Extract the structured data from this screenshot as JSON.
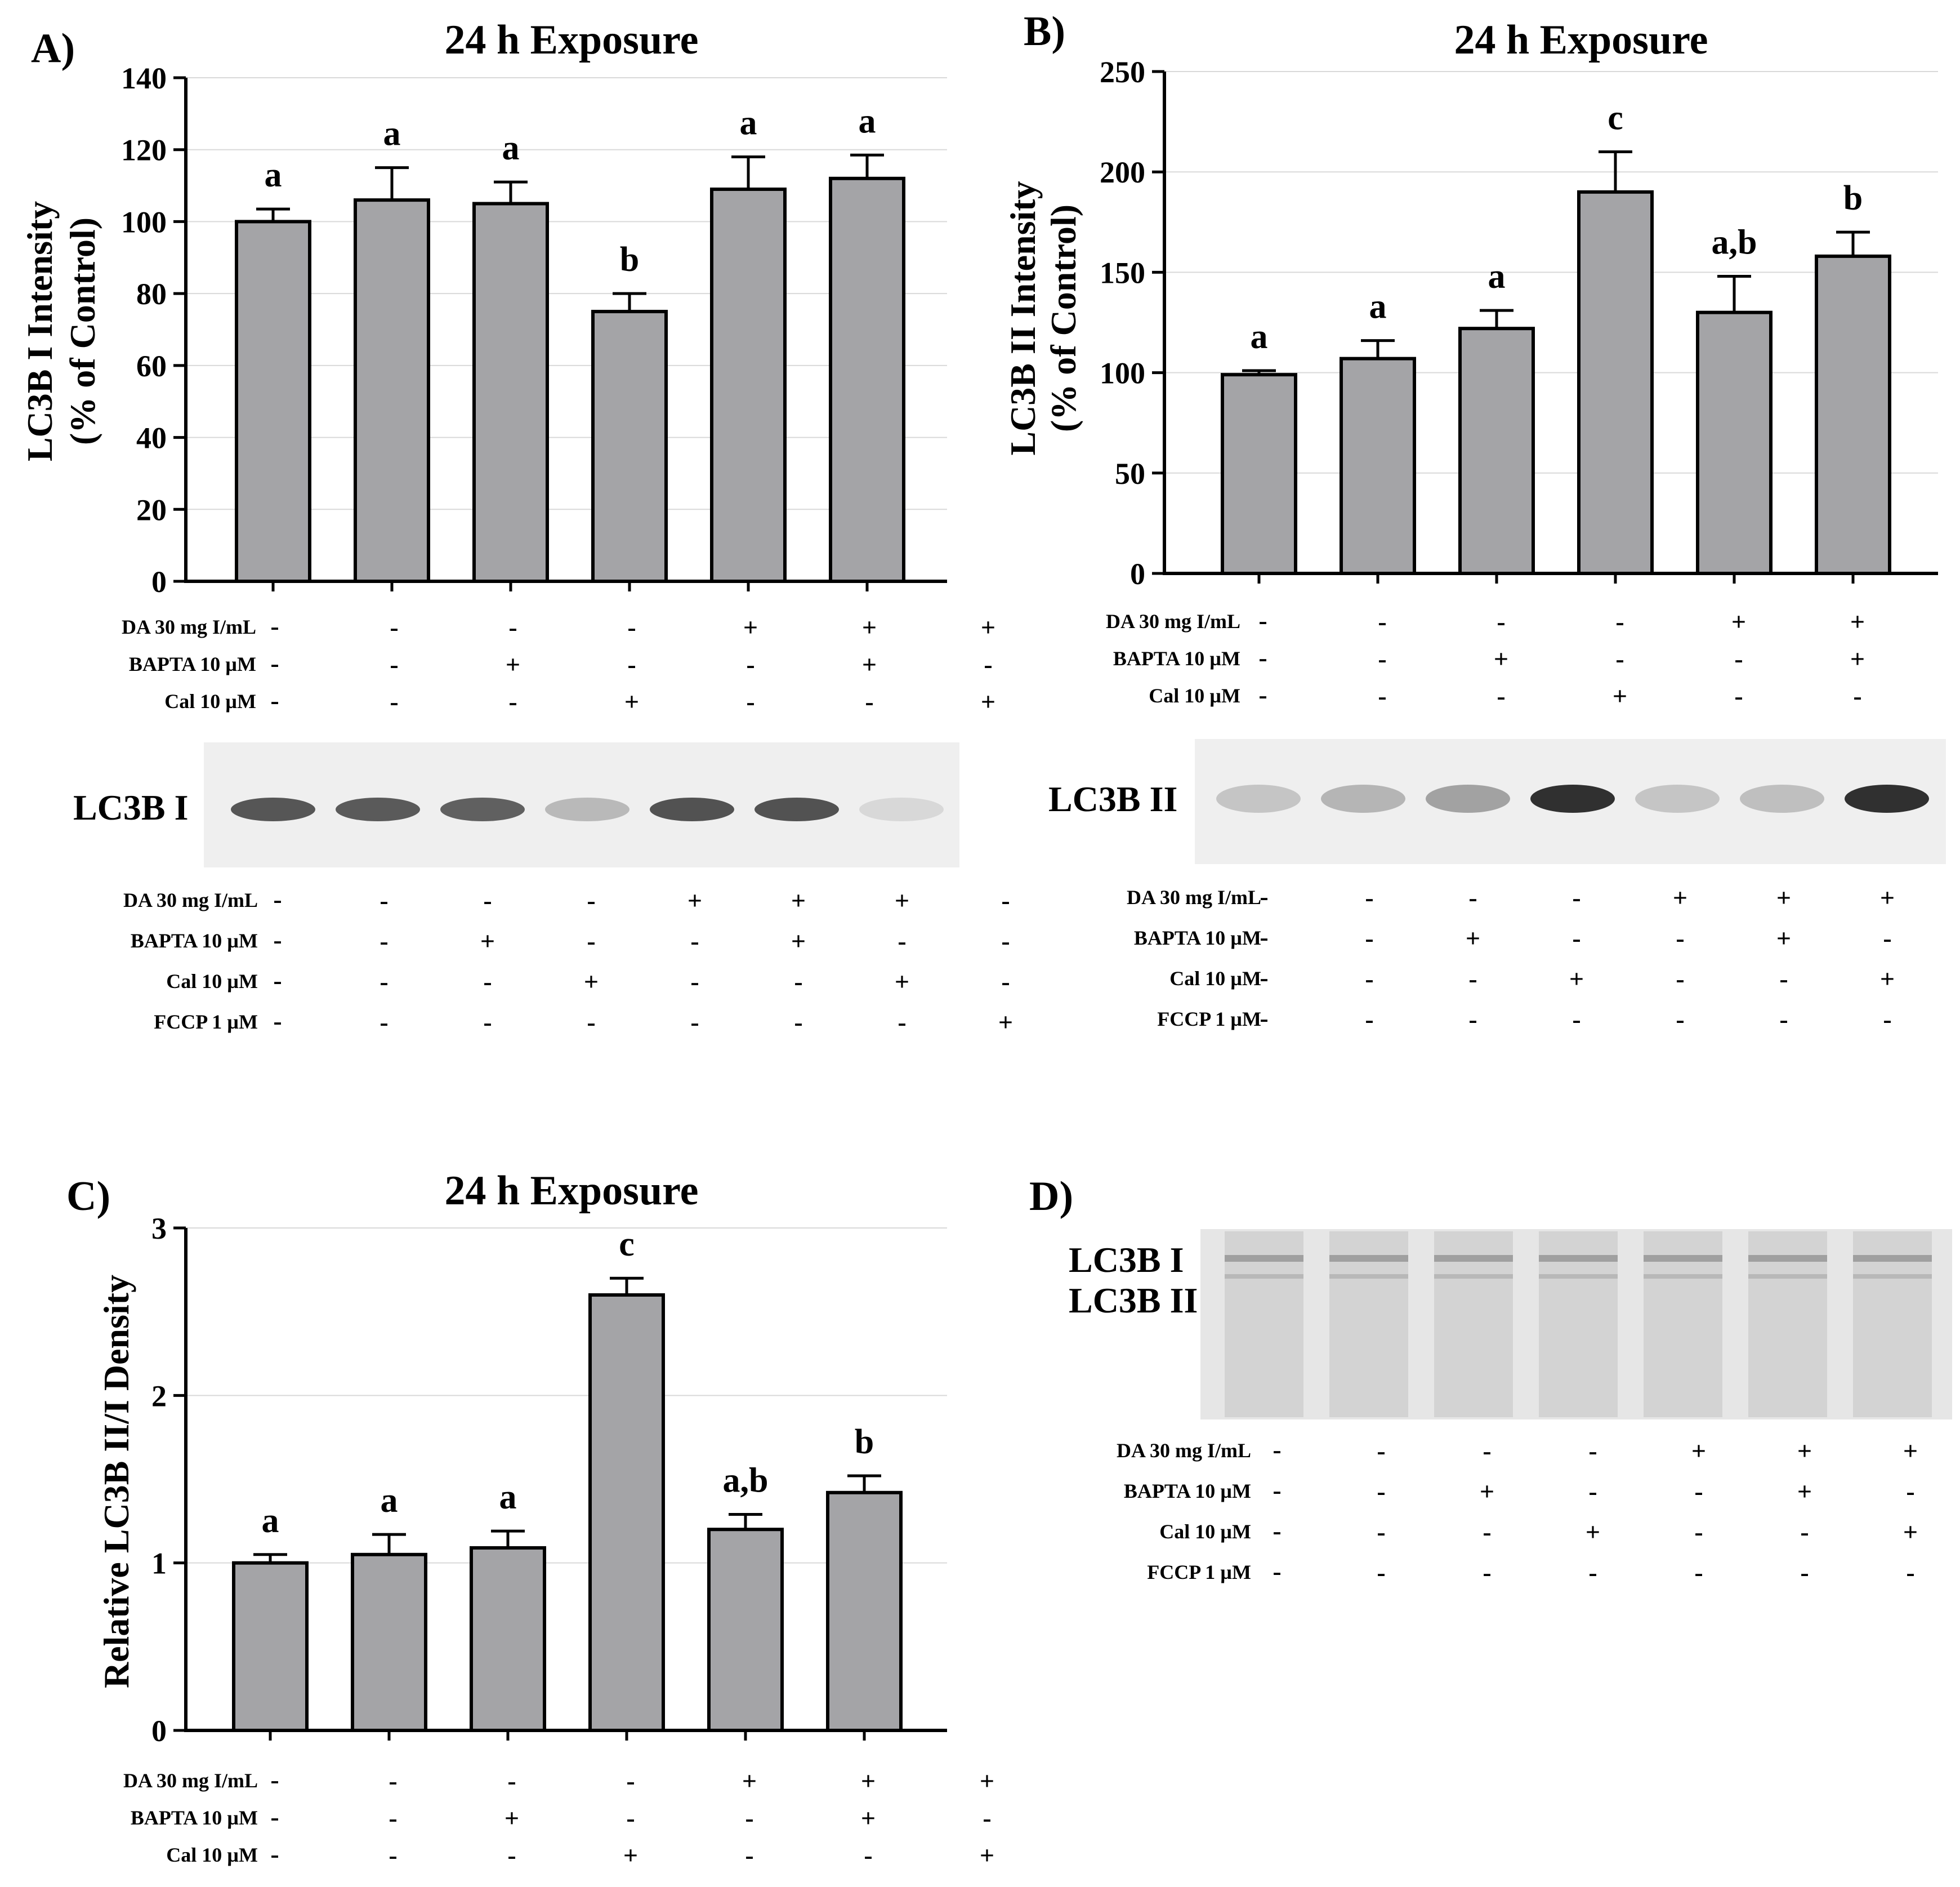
{
  "colors": {
    "bar_fill": "#a4a4a7",
    "bar_stroke": "#000000",
    "grid": "#d9d9d9",
    "blot_band": "#303030",
    "blot_bg": "#efefef"
  },
  "condition_labels": {
    "da": "DA 30 mg I/mL",
    "bapta": "BAPTA 10 µM",
    "cal": "Cal 10 µM",
    "fccp": "FCCP 1 µM"
  },
  "panels": {
    "A": {
      "label": "A)",
      "title": "24 h Exposure",
      "ylabel_line1": "LC3B I Intensity",
      "ylabel_line2": "(% of Control)",
      "conditions": {
        "da": [
          "-",
          "-",
          "-",
          "+",
          "+",
          "+"
        ],
        "bapta": [
          "-",
          "+",
          "-",
          "-",
          "+",
          "-"
        ],
        "cal": [
          "-",
          "-",
          "+",
          "-",
          "-",
          "+"
        ]
      }
    },
    "B": {
      "label": "B)",
      "title": "24 h Exposure",
      "ylabel_line1": "LC3B II Intensity",
      "ylabel_line2": "(% of Control)",
      "conditions": {
        "da": [
          "-",
          "-",
          "-",
          "+",
          "+",
          "+"
        ],
        "bapta": [
          "-",
          "+",
          "-",
          "-",
          "+",
          "-"
        ],
        "cal": [
          "-",
          "-",
          "+",
          "-",
          "-",
          "+"
        ]
      }
    },
    "C": {
      "label": "C)",
      "title": "24 h Exposure",
      "ylabel_line1": "Relative LC3B II/I Density",
      "conditions": {
        "da": [
          "-",
          "-",
          "-",
          "+",
          "+",
          "+"
        ],
        "bapta": [
          "-",
          "+",
          "-",
          "-",
          "+",
          "-"
        ],
        "cal": [
          "-",
          "-",
          "+",
          "-",
          "-",
          "+"
        ]
      }
    },
    "D": {
      "label": "D)",
      "band_labels": [
        "LC3B I",
        "LC3B II"
      ]
    }
  },
  "blots": {
    "A": {
      "band_label": "LC3B I",
      "band_intensity": [
        0.8,
        0.78,
        0.75,
        0.28,
        0.82,
        0.82,
        0.12
      ],
      "conditions": {
        "da": [
          "-",
          "-",
          "-",
          "+",
          "+",
          "+",
          "-"
        ],
        "bapta": [
          "-",
          "+",
          "-",
          "-",
          "+",
          "-",
          "-"
        ],
        "cal": [
          "-",
          "-",
          "+",
          "-",
          "-",
          "+",
          "-"
        ],
        "fccp": [
          "-",
          "-",
          "-",
          "-",
          "-",
          "-",
          "+"
        ]
      }
    },
    "B": {
      "band_label": "LC3B II",
      "band_intensity": [
        0.22,
        0.3,
        0.4,
        1.0,
        0.22,
        0.25,
        1.0
      ],
      "conditions": {
        "da": [
          "-",
          "-",
          "-",
          "+",
          "+",
          "+",
          "-"
        ],
        "bapta": [
          "-",
          "+",
          "-",
          "-",
          "+",
          "-",
          "-"
        ],
        "cal": [
          "-",
          "-",
          "+",
          "-",
          "-",
          "+",
          "-"
        ],
        "fccp": [
          "-",
          "-",
          "-",
          "-",
          "-",
          "-",
          "+"
        ]
      }
    },
    "D": {
      "conditions": {
        "da": [
          "-",
          "-",
          "-",
          "+",
          "+",
          "+",
          "-"
        ],
        "bapta": [
          "-",
          "+",
          "-",
          "-",
          "+",
          "-",
          "-"
        ],
        "cal": [
          "-",
          "-",
          "+",
          "-",
          "-",
          "+",
          "-"
        ],
        "fccp": [
          "-",
          "-",
          "-",
          "-",
          "-",
          "-",
          "+"
        ]
      }
    }
  },
  "chart_data": [
    {
      "type": "bar",
      "title": "24 h Exposure",
      "xlabel": "",
      "ylabel": "LC3B I Intensity (% of Control)",
      "ylim": [
        0,
        140
      ],
      "yticks": [
        0,
        20,
        40,
        60,
        80,
        100,
        120,
        140
      ],
      "values": [
        100,
        106,
        105,
        75,
        109,
        112
      ],
      "errors": [
        3.5,
        9,
        6,
        5,
        9,
        6.5
      ],
      "significance": [
        "a",
        "a",
        "a",
        "b",
        "a",
        "a"
      ],
      "grid": true
    },
    {
      "type": "bar",
      "title": "24 h Exposure",
      "xlabel": "",
      "ylabel": "LC3B II Intensity (% of Control)",
      "ylim": [
        0,
        250
      ],
      "yticks": [
        0,
        50,
        100,
        150,
        200,
        250
      ],
      "values": [
        99,
        107,
        122,
        190,
        130,
        158
      ],
      "errors": [
        2,
        9,
        9,
        20,
        18,
        12
      ],
      "significance": [
        "a",
        "a",
        "a",
        "c",
        "a,b",
        "b"
      ],
      "grid": true
    },
    {
      "type": "bar",
      "title": "24 h Exposure",
      "xlabel": "",
      "ylabel": "Relative LC3B II/I Density",
      "ylim": [
        0,
        3
      ],
      "yticks": [
        0,
        1,
        2,
        3
      ],
      "values": [
        1.0,
        1.05,
        1.09,
        2.6,
        1.2,
        1.42
      ],
      "errors": [
        0.05,
        0.12,
        0.1,
        0.1,
        0.09,
        0.1
      ],
      "significance": [
        "a",
        "a",
        "a",
        "c",
        "a,b",
        "b"
      ],
      "grid": true
    }
  ]
}
